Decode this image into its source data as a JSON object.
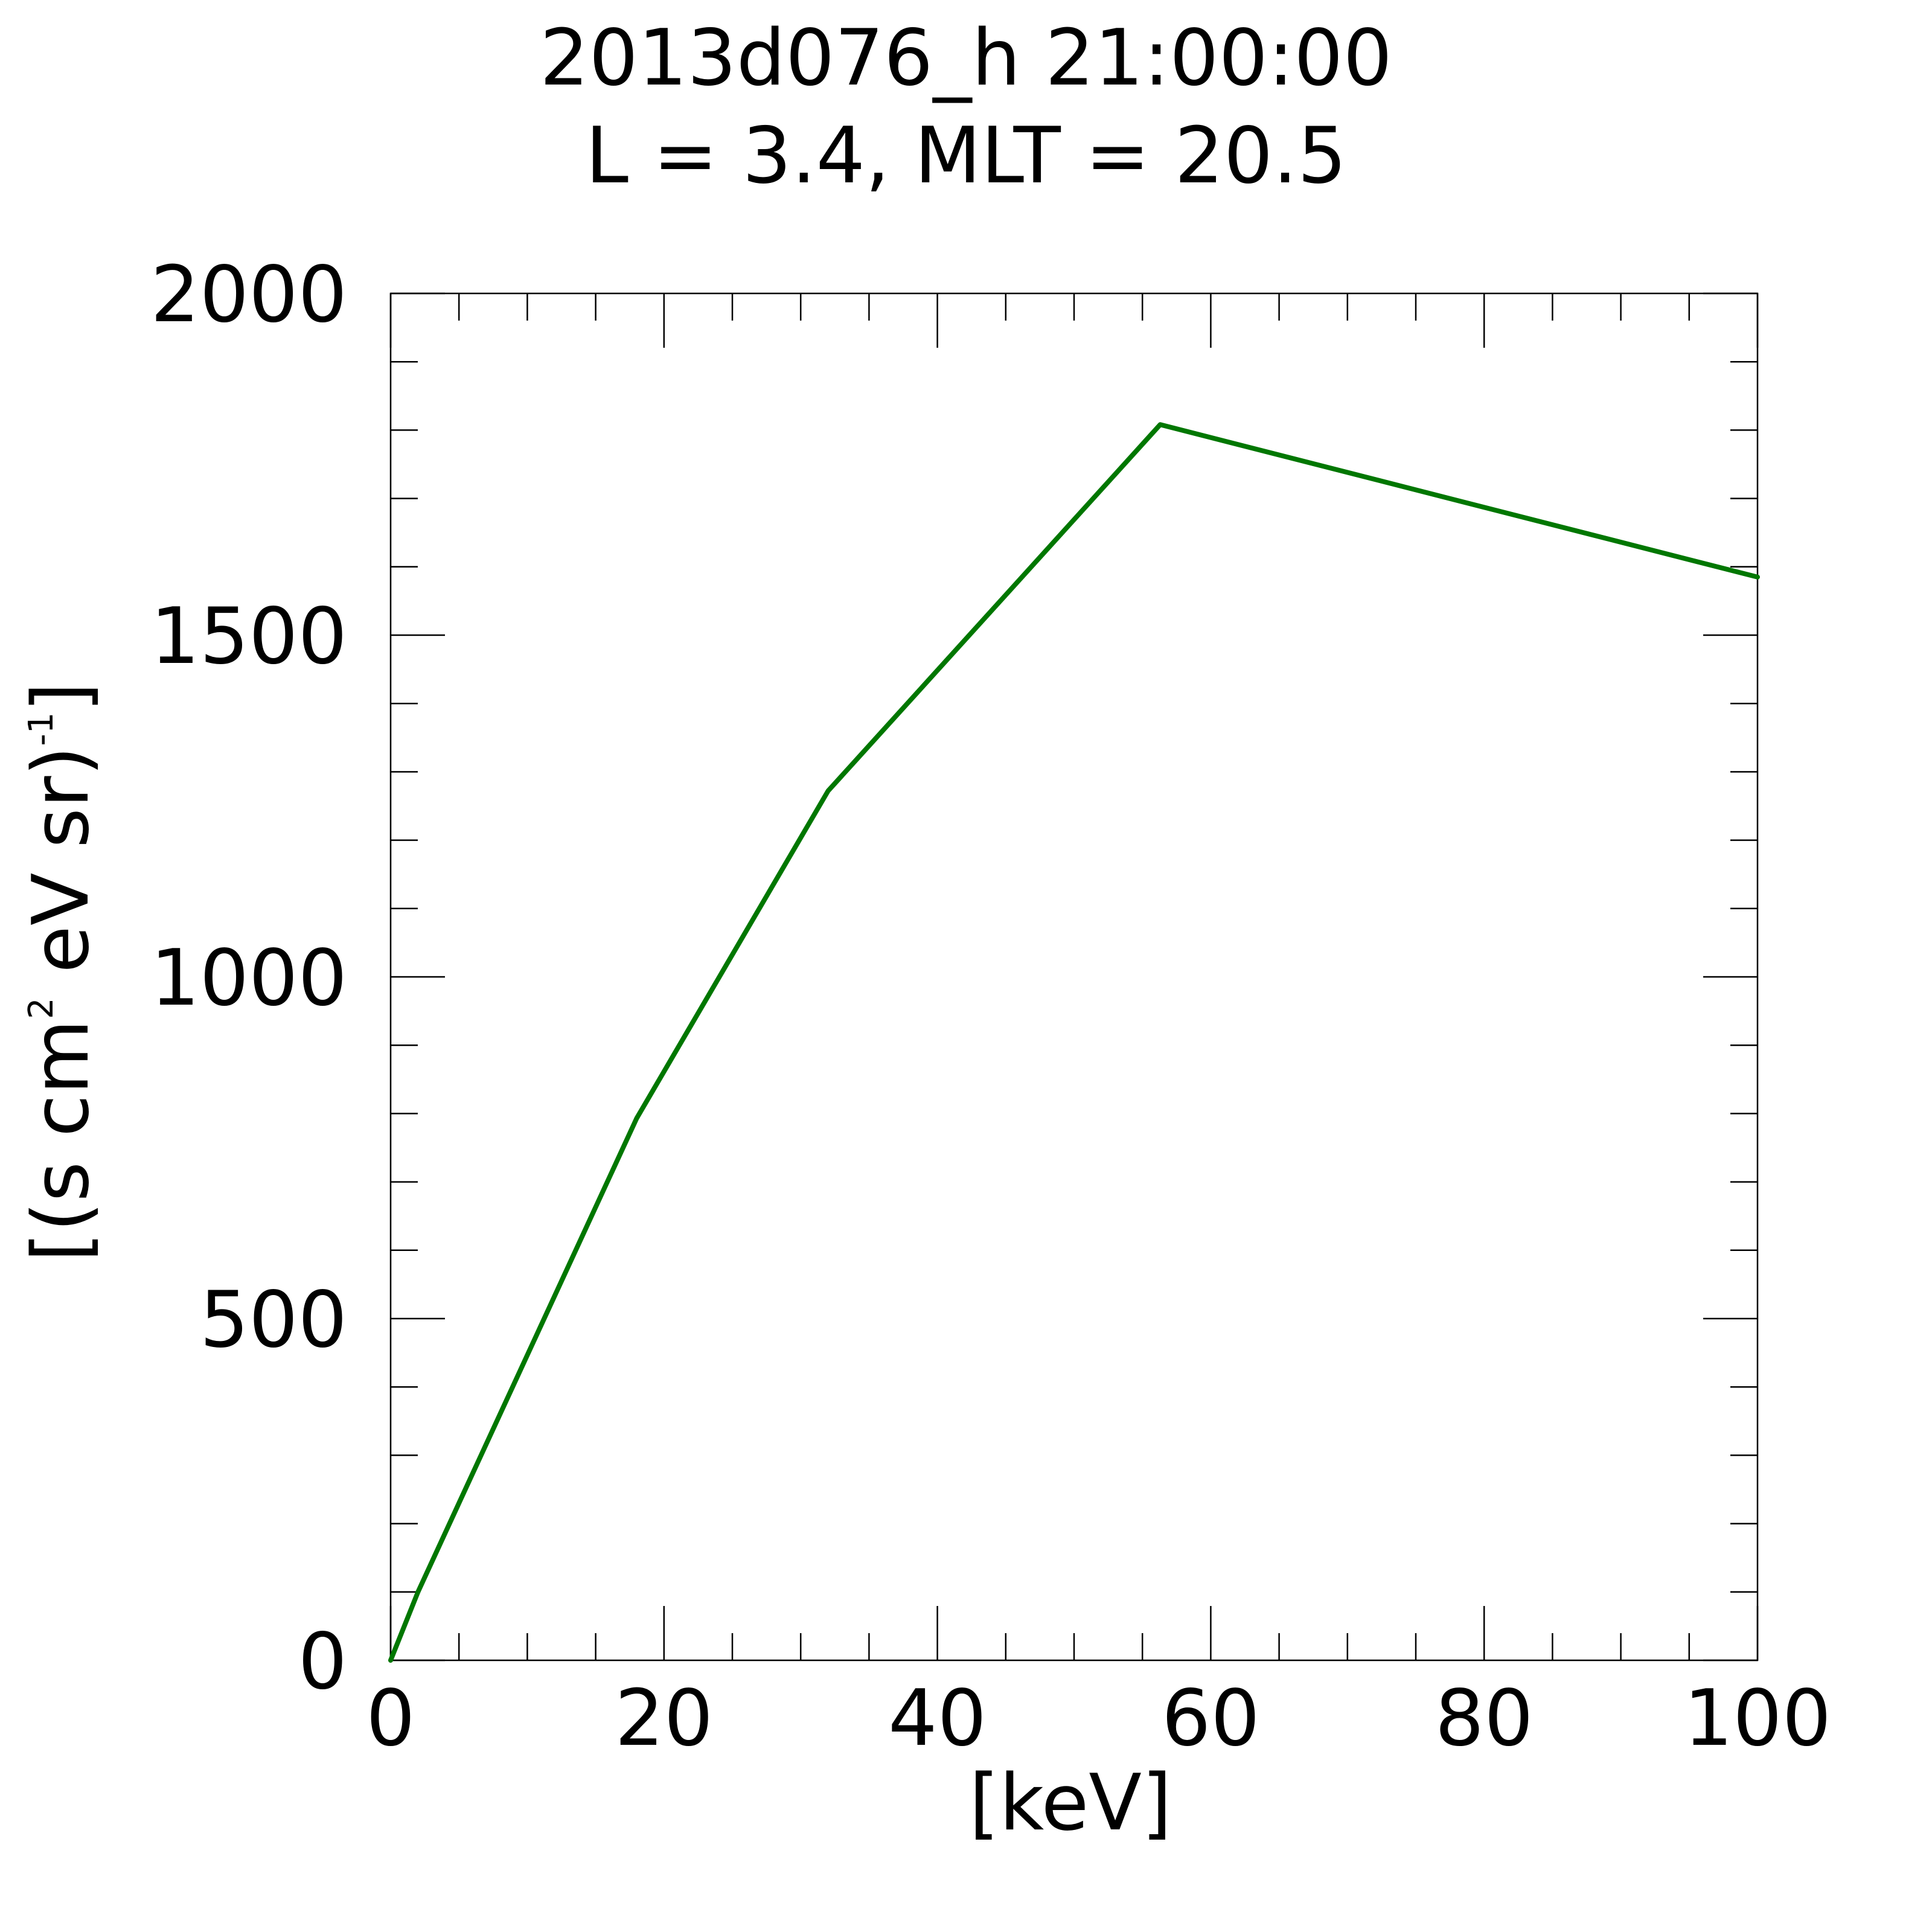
{
  "chart_data": {
    "type": "line",
    "title": "2013d076_h  21:00:00",
    "subtitle": "L = 3.4, MLT = 20.5",
    "xlabel": "[keV]",
    "ylabel": "[(s cm² eV sr)⁻¹]",
    "ylabel_parts": {
      "open": "[(s cm",
      "sup1": "2",
      "mid": " eV sr)",
      "sup2": "-1",
      "close": "]"
    },
    "xlim": [
      0,
      100
    ],
    "ylim": [
      0,
      2000
    ],
    "x_ticks": [
      "0",
      "20",
      "40",
      "60",
      "80",
      "100"
    ],
    "y_ticks": [
      "0",
      "500",
      "1000",
      "1500",
      "2000"
    ],
    "x_minor_step": 5,
    "y_minor_step": 100,
    "grid": false,
    "series": [
      {
        "color": "#007700",
        "x": [
          0,
          2,
          5,
          18,
          32,
          56.3,
          100
        ],
        "y": [
          0,
          100,
          230,
          793,
          1272,
          1808,
          1585
        ]
      }
    ]
  }
}
